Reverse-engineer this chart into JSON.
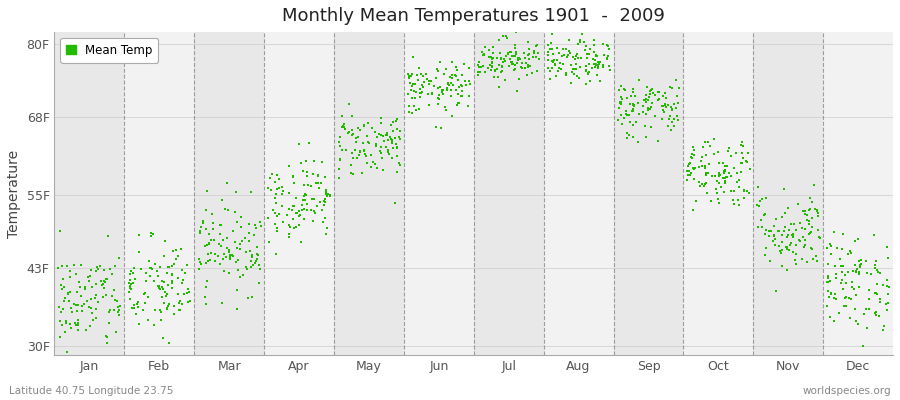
{
  "title": "Monthly Mean Temperatures 1901  -  2009",
  "ylabel": "Temperature",
  "xlabel_months": [
    "Jan",
    "Feb",
    "Mar",
    "Apr",
    "May",
    "Jun",
    "Jul",
    "Aug",
    "Sep",
    "Oct",
    "Nov",
    "Dec"
  ],
  "subtitle_left": "Latitude 40.75 Longitude 23.75",
  "subtitle_right": "worldspecies.org",
  "legend_label": "Mean Temp",
  "yticks": [
    30,
    43,
    55,
    68,
    80
  ],
  "ytick_labels": [
    "30F",
    "43F",
    "55F",
    "68F",
    "80F"
  ],
  "ylim": [
    28.5,
    82
  ],
  "dot_color": "#22bb00",
  "dot_size": 3,
  "background_color": "#ffffff",
  "plot_bg_color": "#ffffff",
  "band_color_dark": "#e8e8e8",
  "band_color_light": "#f2f2f2",
  "monthly_means_f": [
    37.5,
    39.5,
    46.5,
    54.5,
    63.5,
    72.5,
    77.5,
    77.0,
    69.5,
    59.0,
    49.0,
    40.5
  ],
  "monthly_std_f": [
    4.2,
    4.2,
    3.8,
    3.5,
    2.8,
    2.2,
    1.8,
    1.8,
    2.5,
    3.0,
    3.5,
    4.0
  ],
  "n_years": 109,
  "start_year": 1901,
  "end_year": 2009
}
